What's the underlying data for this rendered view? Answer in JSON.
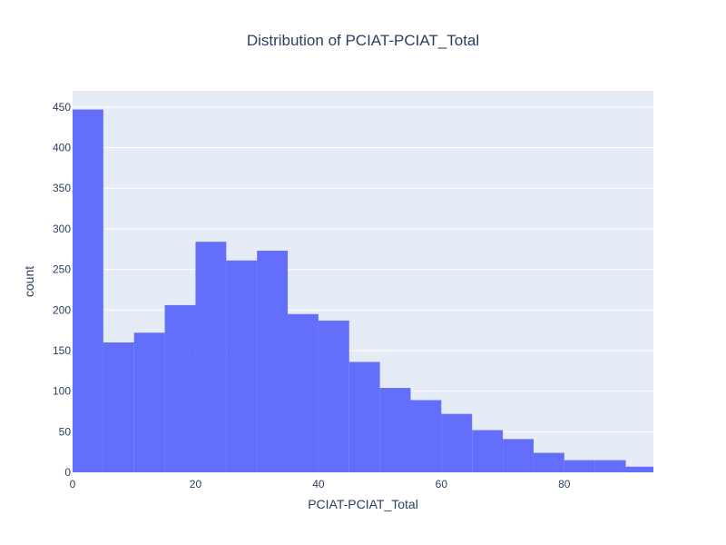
{
  "chart_data": {
    "type": "bar",
    "title": "Distribution of PCIAT-PCIAT_Total",
    "xlabel": "PCIAT-PCIAT_Total",
    "ylabel": "count",
    "bin_width": 5,
    "x_bins": [
      0,
      5,
      10,
      15,
      20,
      25,
      30,
      35,
      40,
      45,
      50,
      55,
      60,
      65,
      70,
      75,
      80,
      85,
      90
    ],
    "values": [
      447,
      160,
      172,
      206,
      284,
      261,
      273,
      195,
      187,
      136,
      104,
      89,
      72,
      52,
      41,
      24,
      15,
      15,
      7
    ],
    "xlim": [
      0,
      94.5
    ],
    "ylim": [
      0,
      470
    ],
    "x_ticks": [
      0,
      20,
      40,
      60,
      80
    ],
    "y_ticks": [
      0,
      50,
      100,
      150,
      200,
      250,
      300,
      350,
      400,
      450
    ],
    "grid": true,
    "colors": {
      "bar": "#636efa",
      "plot_bg": "#e5ecf6",
      "grid": "#ffffff",
      "text": "#2a3f5f"
    }
  }
}
